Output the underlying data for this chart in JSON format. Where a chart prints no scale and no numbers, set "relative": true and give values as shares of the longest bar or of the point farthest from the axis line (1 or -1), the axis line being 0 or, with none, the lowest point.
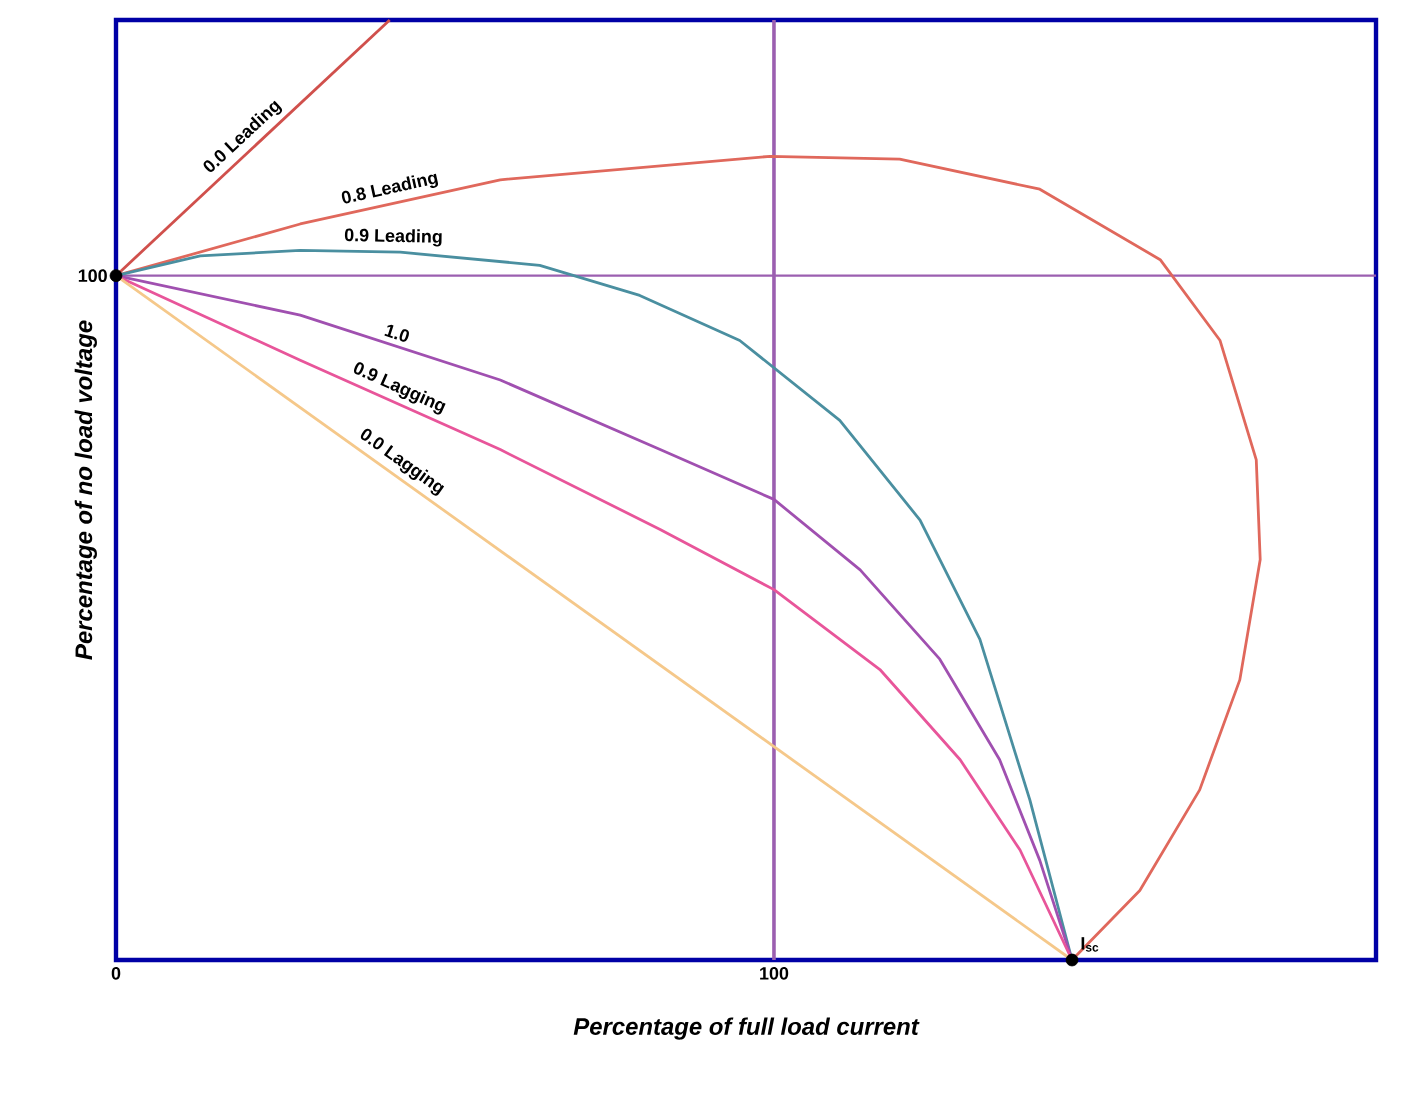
{
  "chart_data": {
    "type": "line",
    "relative": true,
    "xlabel": "Percentage of full load current",
    "ylabel": "Percentage of no load voltage",
    "xlim": [
      0,
      191.5
    ],
    "xticks": [
      0,
      100
    ],
    "legend": false,
    "marker": "none",
    "line_style": "solid",
    "series": [
      {
        "name": "0.0 Leading",
        "color": "#d0504c",
        "x": [
          0,
          41.6
        ],
        "values": [
          0.728,
          1
        ]
      },
      {
        "name": "0.8 Leading",
        "color": "#e0685c",
        "x": [
          0,
          28.0,
          58.4,
          99.4,
          119.1,
          140.4,
          158.7,
          167.8,
          173.3,
          173.9,
          170.8,
          164.7,
          155.6,
          145.3
        ],
        "values": [
          0.728,
          0.783,
          0.83,
          0.855,
          0.852,
          0.82,
          0.745,
          0.659,
          0.532,
          0.426,
          0.298,
          0.181,
          0.074,
          0
        ]
      },
      {
        "name": "0.9 Leading",
        "color": "#4a8fa0",
        "x": [
          0,
          12.8,
          28.0,
          43.2,
          64.4,
          79.6,
          94.8,
          110.0,
          122.2,
          131.3,
          138.9,
          145.3
        ],
        "values": [
          0.728,
          0.749,
          0.755,
          0.753,
          0.739,
          0.707,
          0.659,
          0.574,
          0.468,
          0.341,
          0.17,
          0
        ]
      },
      {
        "name": "1.0",
        "color": "#a050b0",
        "x": [
          0,
          28.0,
          58.4,
          82.7,
          100,
          113.1,
          125.2,
          134.3,
          140.4,
          145.3
        ],
        "values": [
          0.728,
          0.686,
          0.617,
          0.543,
          0.49,
          0.415,
          0.32,
          0.213,
          0.106,
          0
        ]
      },
      {
        "name": "0.9 Lagging",
        "color": "#e8559a",
        "x": [
          0,
          28.0,
          58.4,
          82.7,
          100,
          116.1,
          128.3,
          137.4,
          145.3
        ],
        "values": [
          0.728,
          0.638,
          0.543,
          0.458,
          0.394,
          0.309,
          0.213,
          0.117,
          0
        ]
      },
      {
        "name": "0.0 Lagging",
        "color": "#f5c88a",
        "x": [
          0,
          145.3
        ],
        "values": [
          0.728,
          0
        ]
      },
      {
        "type": "scatter",
        "marker": "circle",
        "color": "#000000",
        "x": [
          0,
          145.3
        ],
        "values": [
          0.728,
          0
        ]
      }
    ],
    "ref_lines": [
      {
        "axis": "x",
        "value": 100,
        "color": "#9b5fb0"
      },
      {
        "axis": "y",
        "value": 0.728,
        "color": "#9b5fb0"
      }
    ],
    "annotations": [
      {
        "text": "100",
        "x": 0,
        "y": 0.728
      },
      {
        "text": "I$_{sc}$",
        "x": 145.3,
        "y": 0
      }
    ]
  }
}
